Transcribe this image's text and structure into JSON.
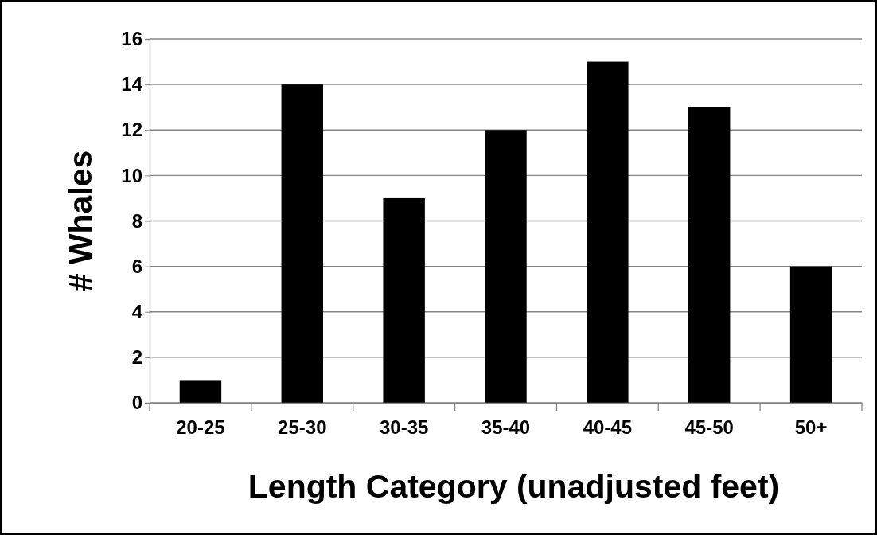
{
  "chart_data": {
    "type": "bar",
    "xlabel": "Length Category (unadjusted feet)",
    "ylabel": "# Whales",
    "categories": [
      "20-25",
      "25-30",
      "30-35",
      "35-40",
      "40-45",
      "45-50",
      "50+"
    ],
    "values": [
      1,
      14,
      9,
      12,
      15,
      13,
      6
    ],
    "color": "#000000",
    "ylim": [
      0,
      16
    ],
    "yticks": [
      0,
      2,
      4,
      6,
      8,
      10,
      12,
      14,
      16
    ],
    "grid": "y"
  }
}
